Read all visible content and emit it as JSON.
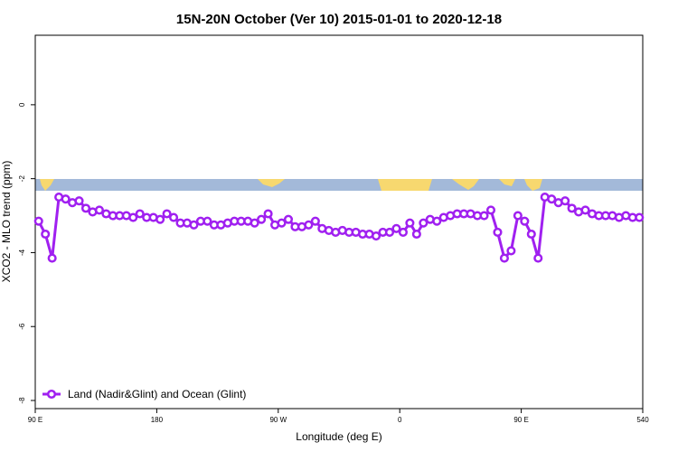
{
  "chart_data": {
    "type": "line",
    "title": "15N-20N October (Ver 10)   2015-01-01 to 2020-12-18",
    "x_label": "Longitude (deg E)",
    "y_label": "XCO2 - MLO trend (ppm)",
    "xlim": [
      90,
      540
    ],
    "ylim": [
      -8.22,
      1.88
    ],
    "xticks": [
      {
        "value": 90,
        "label": "90 E"
      },
      180,
      {
        "value": 270,
        "label": "90 W"
      },
      {
        "value": 360,
        "label": "0"
      },
      {
        "value": 450,
        "label": "90 E"
      },
      540
    ],
    "yticks": [
      0,
      -2,
      -4,
      -6,
      -8
    ],
    "legend": "bottom-left",
    "x": [
      92.5,
      97.5,
      102.5,
      107.5,
      112.5,
      117.5,
      122.5,
      127.5,
      132.5,
      137.5,
      142.5,
      147.5,
      152.5,
      157.5,
      162.5,
      167.5,
      172.5,
      177.5,
      182.5,
      187.5,
      192.5,
      197.5,
      202.5,
      207.5,
      212.5,
      217.5,
      222.5,
      227.5,
      232.5,
      237.5,
      242.5,
      247.5,
      252.5,
      257.5,
      262.5,
      267.5,
      272.5,
      277.5,
      282.5,
      287.5,
      292.5,
      297.5,
      302.5,
      307.5,
      312.5,
      317.5,
      322.5,
      327.5,
      332.5,
      337.5,
      342.5,
      347.5,
      352.5,
      357.5,
      362.5,
      367.5,
      372.5,
      377.5,
      382.5,
      387.5,
      392.5,
      397.5,
      402.5,
      407.5,
      412.5,
      417.5,
      422.5,
      427.5,
      432.5,
      437.5,
      442.5,
      447.5,
      452.5,
      457.5,
      462.5,
      467.5,
      472.5,
      477.5,
      482.5,
      487.5,
      492.5,
      497.5,
      502.5,
      507.5,
      512.5,
      517.5,
      522.5,
      527.5,
      532.5,
      537.5
    ],
    "series": [
      {
        "name": "Land (Nadir&Glint) and Ocean (Glint)",
        "color": "#a020f0",
        "values": [
          -3.15,
          -3.5,
          -4.15,
          -2.5,
          -2.55,
          -2.65,
          -2.6,
          -2.8,
          -2.9,
          -2.85,
          -2.95,
          -3.0,
          -3.0,
          -3.0,
          -3.05,
          -2.95,
          -3.05,
          -3.05,
          -3.1,
          -2.95,
          -3.05,
          -3.2,
          -3.2,
          -3.25,
          -3.15,
          -3.15,
          -3.25,
          -3.25,
          -3.2,
          -3.15,
          -3.15,
          -3.15,
          -3.2,
          -3.1,
          -2.95,
          -3.25,
          -3.2,
          -3.1,
          -3.3,
          -3.3,
          -3.25,
          -3.15,
          -3.35,
          -3.4,
          -3.45,
          -3.4,
          -3.45,
          -3.45,
          -3.5,
          -3.5,
          -3.55,
          -3.45,
          -3.45,
          -3.35,
          -3.45,
          -3.2,
          -3.5,
          -3.2,
          -3.1,
          -3.15,
          -3.05,
          -3.0,
          -2.95,
          -2.95,
          -2.95,
          -3.0,
          -3.0,
          -2.85,
          -3.45,
          -4.15,
          -3.95,
          -3.0,
          -3.15,
          -3.5,
          -4.15,
          -2.5,
          -2.55,
          -2.65,
          -2.6,
          -2.8,
          -2.9,
          -2.85,
          -2.95,
          -3.0,
          -3.0,
          -3.0,
          -3.05,
          -3.0,
          -3.05,
          -3.05
        ]
      }
    ]
  }
}
